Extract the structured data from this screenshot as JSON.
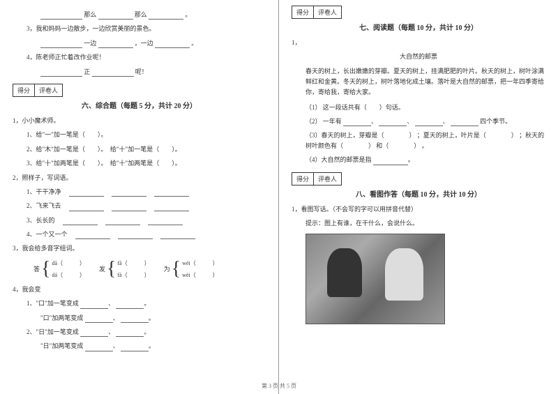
{
  "footer": "第 3 页 共 5 页",
  "scoreBox": {
    "c1": "得分",
    "c2": "评卷人"
  },
  "left": {
    "l1a": "那么",
    "l1b": "那么",
    "l1c": "。",
    "l2": "3，我和妈妈一边散步，一边欣赏美丽的景色。",
    "l3a": "一边",
    "l3b": "，一边",
    "l3c": "。",
    "l4": "4，陈老师正忙着改作业呢！",
    "l5a": "正",
    "l5b": "呢！",
    "section6": "六、综合题（每题 5 分，共计 20 分）",
    "q1": "1，小小魔术师。",
    "q1_1": "1、给\"一\"加一笔是（　　）。",
    "q1_2": "2、给\"木\"加一笔是（　　）。　给\"十\"加一笔是（　　）。",
    "q1_3": "3、给\"十\"加两笔是（　　）。　给\"十\"加两笔是（　　）。",
    "q2": "2，照样子，写词语。",
    "q2_1label": "1、干干净净",
    "q2_2label": "2、飞来飞去",
    "q2_3label": "3、长长的",
    "q2_4label": "4、一个又一个",
    "q3": "3，我会给多音字组词。",
    "brace": {
      "g1": {
        "char": "答",
        "top": "dā（　　　）",
        "bot": "dá（　　　）"
      },
      "g2": {
        "char": "发",
        "top": "fā（　　　）",
        "bot": "fà（　　　）"
      },
      "g3": {
        "char": "为",
        "top": "wéi（　　　）",
        "bot": "wèi（　　　）"
      }
    },
    "q4": "4，我会变",
    "q4_1": "1、\"口\"加一笔变成",
    "q4_2": "\"口\"加两笔变成",
    "q4_3": "2、\"日\"加一笔变成",
    "q4_4": "\"日\"加两笔变成"
  },
  "right": {
    "section7": "七、阅读题（每题 10 分，共计 10 分）",
    "r1": "1，",
    "r1title": "大自然的邮票",
    "r1text": "春天的树上，长出嫩嫩的芽瓣。夏天的树上，挂满肥肥的叶片。秋天的树上，树叶涂满鲜红和金黄。冬天的树上，树叶落地化成土壤。落叶是大自然的邮票，把一年四季寄给你，寄给我，寄给大家。",
    "rq1": "（1） 这一段话共有（　　）句话。",
    "rq2": "（2） 一年有",
    "rq2b": "四个季节。",
    "rq3a": "（3）春天的树上，芽瓣是",
    "rq3b": "；夏天的树上，叶片是",
    "rq3c": "；秋天的树叶颜色有",
    "rq3d": "和",
    "rq3e": "。",
    "rq4": "（4）大自然的邮票是指",
    "section8": "八、看图作答（每题 10 分，共计 10 分）",
    "r8_1": "1，看图写话。（不会写的字可以用拼音代替）",
    "r8_2": "提示：图上有谁，在干什么，会说什么。"
  }
}
